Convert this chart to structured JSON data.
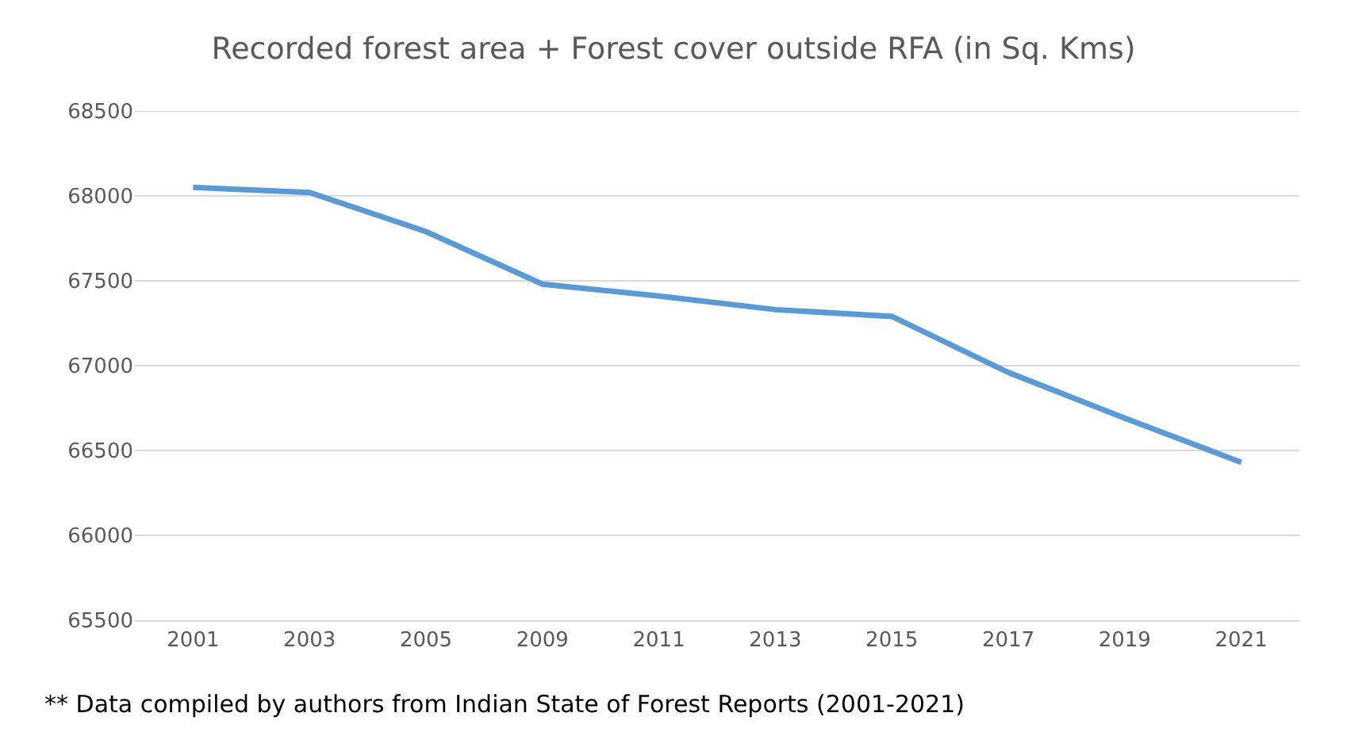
{
  "chart_data": {
    "type": "line",
    "title": "Recorded forest area + Forest cover outside RFA (in Sq. Kms)",
    "categories": [
      "2001",
      "2003",
      "2005",
      "2009",
      "2011",
      "2013",
      "2015",
      "2017",
      "2019",
      "2021"
    ],
    "series": [
      {
        "color": "#5b9bd5",
        "values": [
          68050,
          68020,
          67790,
          67480,
          67410,
          67330,
          67290,
          66960,
          66690,
          66430
        ]
      }
    ],
    "ylim": [
      65500,
      68500
    ],
    "yticks": [
      65500,
      66000,
      66500,
      67000,
      67500,
      68000,
      68500
    ],
    "grid": "y",
    "marker": "none",
    "line_style": "solid",
    "annotations": [
      "** Data compiled by authors from Indian State of Forest Reports (2001-2021)"
    ]
  }
}
